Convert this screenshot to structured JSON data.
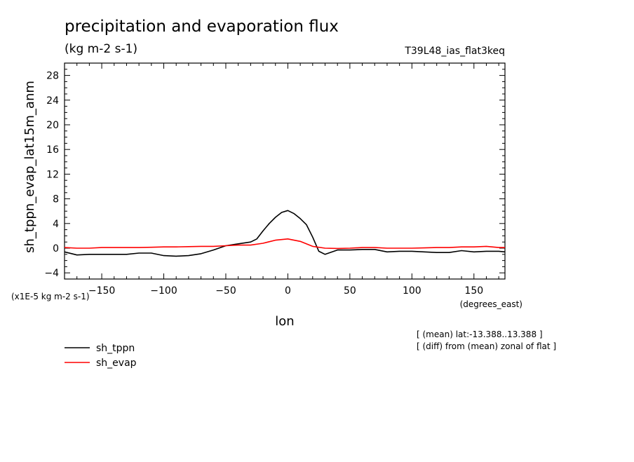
{
  "chart_data": {
    "type": "line",
    "title": "precipitation and evaporation flux",
    "subtitle": "(kg m-2 s-1)",
    "run_label": "T39L48_ias_flat3keq",
    "xlabel": "lon",
    "xunits": "(degrees_east)",
    "ylabel": "sh_tppn_evap_lat15m_anm",
    "yunits": "(x1E-5 kg m-2 s-1)",
    "xlim": [
      -180,
      175
    ],
    "ylim": [
      -5,
      30
    ],
    "xticks": [
      -150,
      -100,
      -50,
      0,
      50,
      100,
      150
    ],
    "yticks": [
      -4,
      0,
      4,
      8,
      12,
      16,
      20,
      24,
      28
    ],
    "grid": false,
    "legend_position": "bottom-left",
    "notes": [
      "[ (mean) lat:-13.388..13.388 ]",
      "[ (diff) from (mean) zonal of flat ]"
    ],
    "series": [
      {
        "name": "sh_tppn",
        "color": "#000000",
        "x": [
          -180,
          -170,
          -160,
          -150,
          -140,
          -130,
          -120,
          -110,
          -100,
          -90,
          -80,
          -70,
          -60,
          -50,
          -40,
          -30,
          -25,
          -20,
          -15,
          -10,
          -5,
          0,
          5,
          10,
          15,
          20,
          25,
          30,
          40,
          50,
          60,
          70,
          80,
          90,
          100,
          110,
          120,
          130,
          140,
          150,
          160,
          170,
          175
        ],
        "y": [
          -0.6,
          -1.1,
          -1.0,
          -1.0,
          -1.0,
          -1.0,
          -0.8,
          -0.8,
          -1.2,
          -1.3,
          -1.2,
          -0.9,
          -0.3,
          0.4,
          0.7,
          1.0,
          1.5,
          2.8,
          4.0,
          5.0,
          5.8,
          6.1,
          5.6,
          4.8,
          3.8,
          1.8,
          -0.5,
          -1.0,
          -0.3,
          -0.3,
          -0.2,
          -0.2,
          -0.6,
          -0.5,
          -0.5,
          -0.6,
          -0.7,
          -0.7,
          -0.4,
          -0.6,
          -0.5,
          -0.5,
          -0.6
        ]
      },
      {
        "name": "sh_evap",
        "color": "#ff0000",
        "x": [
          -180,
          -170,
          -160,
          -150,
          -140,
          -130,
          -120,
          -110,
          -100,
          -90,
          -80,
          -70,
          -60,
          -50,
          -40,
          -30,
          -20,
          -10,
          0,
          10,
          20,
          30,
          40,
          50,
          60,
          70,
          80,
          90,
          100,
          110,
          120,
          130,
          140,
          150,
          160,
          170,
          175
        ],
        "y": [
          0.1,
          0.0,
          0.0,
          0.1,
          0.1,
          0.1,
          0.1,
          0.15,
          0.2,
          0.2,
          0.25,
          0.3,
          0.3,
          0.4,
          0.5,
          0.5,
          0.8,
          1.3,
          1.5,
          1.1,
          0.3,
          0.0,
          -0.05,
          0.0,
          0.1,
          0.1,
          0.0,
          0.0,
          0.0,
          0.05,
          0.1,
          0.1,
          0.2,
          0.2,
          0.3,
          0.1,
          0.1
        ]
      }
    ]
  }
}
